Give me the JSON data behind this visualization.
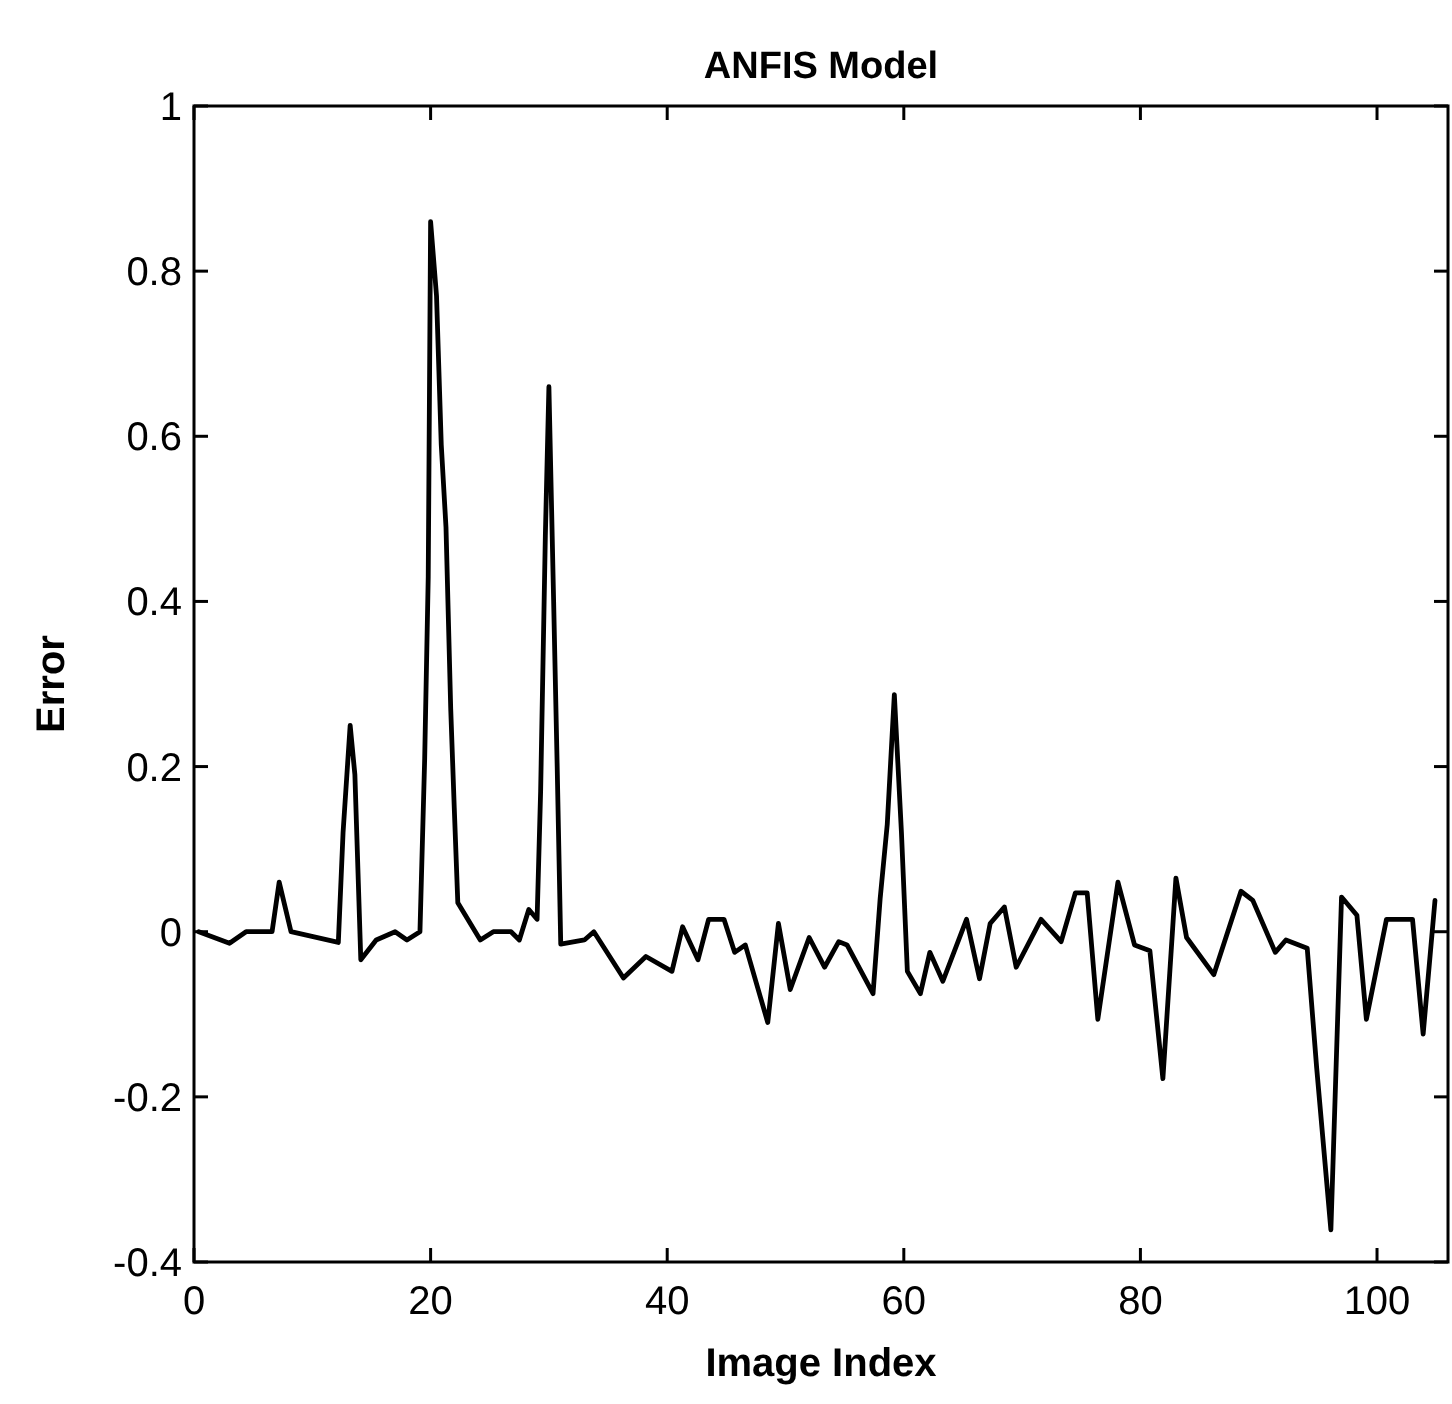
{
  "chart_data": {
    "type": "line",
    "title": "ANFIS Model",
    "xlabel": "Image Index",
    "ylabel": "Error",
    "x": [
      0.4,
      3,
      4.4,
      6.6,
      7.2,
      8.2,
      12.2,
      12.6,
      13.2,
      13.6,
      14.1,
      15.4,
      17,
      18,
      19.1,
      19.5,
      19.8,
      20,
      20.5,
      20.9,
      21.3,
      21.7,
      22,
      22.3,
      24.2,
      25.3,
      26.8,
      27.5,
      28.3,
      29,
      29.3,
      29.7,
      30,
      30.4,
      30.7,
      31,
      33,
      33.8,
      36.3,
      38.2,
      40.4,
      41.3,
      42.6,
      43.5,
      44.8,
      45.7,
      46.6,
      48.5,
      49.4,
      50.4,
      52,
      53.3,
      54.5,
      55.2,
      57.4,
      58,
      58.6,
      59.2,
      59.8,
      60.3,
      61.4,
      62.2,
      63.3,
      65.3,
      66.4,
      67.3,
      68.5,
      69.5,
      71.6,
      73.3,
      74.5,
      75.5,
      76.4,
      78.1,
      79.5,
      80.8,
      81.9,
      83,
      83.9,
      86.2,
      88.5,
      89.5,
      91.4,
      92.3,
      94.1,
      94.9,
      96.1,
      97,
      98.3,
      99.1,
      100.8,
      103,
      103.9,
      104.9
    ],
    "series": [
      {
        "color": "#000000",
        "values": [
          0,
          -0.014,
          0,
          0,
          0.06,
          0,
          -0.013,
          0.12,
          0.25,
          0.19,
          -0.034,
          -0.01,
          0,
          -0.01,
          0,
          0.21,
          0.43,
          0.86,
          0.77,
          0.59,
          0.49,
          0.27,
          0.15,
          0.035,
          -0.01,
          0,
          0,
          -0.01,
          0.027,
          0.015,
          0.17,
          0.48,
          0.66,
          0.4,
          0.2,
          -0.015,
          -0.01,
          0,
          -0.056,
          -0.03,
          -0.048,
          0.006,
          -0.034,
          0.015,
          0.015,
          -0.025,
          -0.016,
          -0.11,
          0.01,
          -0.07,
          -0.007,
          -0.043,
          -0.012,
          -0.016,
          -0.075,
          0.04,
          0.13,
          0.287,
          0.12,
          -0.048,
          -0.075,
          -0.025,
          -0.06,
          0.015,
          -0.057,
          0.01,
          0.03,
          -0.043,
          0.015,
          -0.012,
          0.047,
          0.047,
          -0.106,
          0.06,
          -0.016,
          -0.023,
          -0.178,
          0.065,
          -0.007,
          -0.052,
          0.049,
          0.038,
          -0.025,
          -0.01,
          -0.02,
          -0.165,
          -0.361,
          0.042,
          0.02,
          -0.106,
          0.015,
          0.015,
          -0.124,
          0.038
        ]
      }
    ],
    "xlim": [
      0,
      106
    ],
    "xticks": [
      0,
      20,
      40,
      60,
      80,
      100
    ],
    "ylim": [
      -0.4,
      1
    ],
    "yticks": [
      -0.4,
      -0.2,
      0,
      0.2,
      0.4,
      0.6,
      0.8,
      1
    ],
    "grid": false,
    "marker": "none",
    "line_style": "solid"
  }
}
